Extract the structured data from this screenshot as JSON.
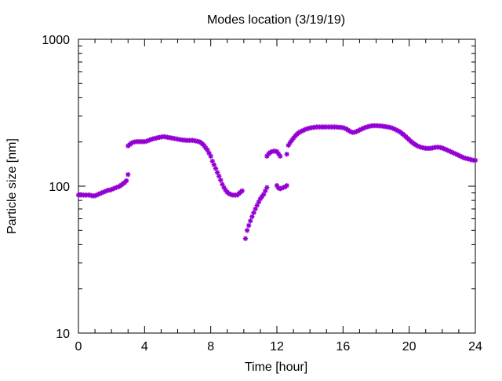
{
  "chart_data": {
    "type": "scatter",
    "title": "Modes location (3/19/19)",
    "xlabel": "Time [hour]",
    "ylabel": "Particle size [nm]",
    "xlim": [
      0,
      24
    ],
    "ylim": [
      10,
      1000
    ],
    "yscale": "log",
    "xticks": [
      0,
      4,
      8,
      12,
      16,
      20,
      24
    ],
    "yticks": [
      10,
      100,
      1000
    ],
    "grid": false,
    "legend": "none",
    "marker_color": "#9400d3",
    "marker": "asterisk",
    "series": [
      {
        "points": [
          [
            0.0,
            87
          ],
          [
            0.1,
            87
          ],
          [
            0.2,
            87
          ],
          [
            0.3,
            87
          ],
          [
            0.4,
            87
          ],
          [
            0.5,
            87
          ],
          [
            0.6,
            87
          ],
          [
            0.7,
            87
          ],
          [
            0.8,
            86
          ],
          [
            0.9,
            86
          ],
          [
            1.0,
            86
          ],
          [
            1.1,
            87
          ],
          [
            1.2,
            88
          ],
          [
            1.3,
            89
          ],
          [
            1.4,
            90
          ],
          [
            1.5,
            91
          ],
          [
            1.6,
            92
          ],
          [
            1.7,
            93
          ],
          [
            1.8,
            94
          ],
          [
            1.9,
            94
          ],
          [
            2.0,
            95
          ],
          [
            2.1,
            96
          ],
          [
            2.2,
            97
          ],
          [
            2.3,
            98
          ],
          [
            2.4,
            99
          ],
          [
            2.5,
            100
          ],
          [
            2.6,
            102
          ],
          [
            2.7,
            104
          ],
          [
            2.8,
            106
          ],
          [
            2.9,
            109
          ],
          [
            3.0,
            120
          ],
          [
            3.0,
            188
          ],
          [
            3.1,
            192
          ],
          [
            3.2,
            196
          ],
          [
            3.3,
            199
          ],
          [
            3.4,
            200
          ],
          [
            3.5,
            201
          ],
          [
            3.6,
            201
          ],
          [
            3.7,
            201
          ],
          [
            3.8,
            201
          ],
          [
            3.9,
            201
          ],
          [
            4.0,
            201
          ],
          [
            4.1,
            202
          ],
          [
            4.2,
            204
          ],
          [
            4.3,
            206
          ],
          [
            4.4,
            208
          ],
          [
            4.5,
            210
          ],
          [
            4.6,
            211
          ],
          [
            4.7,
            212
          ],
          [
            4.8,
            214
          ],
          [
            4.9,
            215
          ],
          [
            5.0,
            216
          ],
          [
            5.1,
            217
          ],
          [
            5.2,
            217
          ],
          [
            5.3,
            216
          ],
          [
            5.4,
            215
          ],
          [
            5.5,
            214
          ],
          [
            5.6,
            213
          ],
          [
            5.7,
            212
          ],
          [
            5.8,
            211
          ],
          [
            5.9,
            210
          ],
          [
            6.0,
            209
          ],
          [
            6.1,
            208
          ],
          [
            6.2,
            207
          ],
          [
            6.3,
            206
          ],
          [
            6.4,
            206
          ],
          [
            6.5,
            205
          ],
          [
            6.6,
            205
          ],
          [
            6.7,
            205
          ],
          [
            6.8,
            205
          ],
          [
            6.9,
            205
          ],
          [
            7.0,
            204
          ],
          [
            7.1,
            203
          ],
          [
            7.2,
            202
          ],
          [
            7.3,
            201
          ],
          [
            7.4,
            198
          ],
          [
            7.5,
            194
          ],
          [
            7.6,
            189
          ],
          [
            7.7,
            182
          ],
          [
            7.8,
            176
          ],
          [
            7.9,
            168
          ],
          [
            8.0,
            160
          ],
          [
            8.1,
            148
          ],
          [
            8.2,
            140
          ],
          [
            8.3,
            132
          ],
          [
            8.4,
            124
          ],
          [
            8.5,
            117
          ],
          [
            8.6,
            110
          ],
          [
            8.7,
            103
          ],
          [
            8.8,
            98
          ],
          [
            8.9,
            94
          ],
          [
            9.0,
            91
          ],
          [
            9.1,
            89
          ],
          [
            9.2,
            88
          ],
          [
            9.3,
            87
          ],
          [
            9.4,
            87
          ],
          [
            9.5,
            87
          ],
          [
            9.6,
            87
          ],
          [
            9.7,
            89
          ],
          [
            9.8,
            91
          ],
          [
            9.9,
            93
          ],
          [
            10.1,
            44
          ],
          [
            10.2,
            50
          ],
          [
            10.3,
            54
          ],
          [
            10.4,
            58
          ],
          [
            10.5,
            62
          ],
          [
            10.6,
            66
          ],
          [
            10.7,
            70
          ],
          [
            10.8,
            74
          ],
          [
            10.9,
            78
          ],
          [
            11.0,
            82
          ],
          [
            11.1,
            85
          ],
          [
            11.2,
            88
          ],
          [
            11.3,
            93
          ],
          [
            11.4,
            98
          ],
          [
            11.4,
            160
          ],
          [
            11.5,
            166
          ],
          [
            11.6,
            170
          ],
          [
            11.7,
            172
          ],
          [
            11.8,
            173
          ],
          [
            11.9,
            173
          ],
          [
            12.0,
            172
          ],
          [
            12.1,
            166
          ],
          [
            12.2,
            160
          ],
          [
            12.0,
            101
          ],
          [
            12.1,
            97
          ],
          [
            12.2,
            96
          ],
          [
            12.3,
            97
          ],
          [
            12.4,
            98
          ],
          [
            12.5,
            99
          ],
          [
            12.6,
            101
          ],
          [
            12.6,
            165
          ],
          [
            12.7,
            190
          ],
          [
            12.8,
            198
          ],
          [
            12.9,
            205
          ],
          [
            13.0,
            212
          ],
          [
            13.1,
            219
          ],
          [
            13.2,
            225
          ],
          [
            13.3,
            230
          ],
          [
            13.4,
            234
          ],
          [
            13.5,
            237
          ],
          [
            13.6,
            240
          ],
          [
            13.7,
            243
          ],
          [
            13.8,
            245
          ],
          [
            13.9,
            247
          ],
          [
            14.0,
            249
          ],
          [
            14.1,
            250
          ],
          [
            14.2,
            251
          ],
          [
            14.3,
            252
          ],
          [
            14.4,
            253
          ],
          [
            14.5,
            253
          ],
          [
            14.6,
            253
          ],
          [
            14.7,
            253
          ],
          [
            14.8,
            253
          ],
          [
            14.9,
            253
          ],
          [
            15.0,
            253
          ],
          [
            15.1,
            253
          ],
          [
            15.2,
            253
          ],
          [
            15.3,
            253
          ],
          [
            15.4,
            253
          ],
          [
            15.5,
            253
          ],
          [
            15.6,
            253
          ],
          [
            15.7,
            252
          ],
          [
            15.8,
            252
          ],
          [
            15.9,
            251
          ],
          [
            16.0,
            250
          ],
          [
            16.1,
            248
          ],
          [
            16.2,
            245
          ],
          [
            16.3,
            241
          ],
          [
            16.4,
            237
          ],
          [
            16.5,
            234
          ],
          [
            16.6,
            232
          ],
          [
            16.7,
            233
          ],
          [
            16.8,
            235
          ],
          [
            16.9,
            238
          ],
          [
            17.0,
            241
          ],
          [
            17.1,
            244
          ],
          [
            17.2,
            247
          ],
          [
            17.3,
            250
          ],
          [
            17.4,
            252
          ],
          [
            17.5,
            254
          ],
          [
            17.6,
            256
          ],
          [
            17.7,
            257
          ],
          [
            17.8,
            258
          ],
          [
            17.9,
            258
          ],
          [
            18.0,
            258
          ],
          [
            18.1,
            258
          ],
          [
            18.2,
            257
          ],
          [
            18.3,
            257
          ],
          [
            18.4,
            256
          ],
          [
            18.5,
            255
          ],
          [
            18.6,
            254
          ],
          [
            18.7,
            253
          ],
          [
            18.8,
            252
          ],
          [
            18.9,
            250
          ],
          [
            19.0,
            248
          ],
          [
            19.1,
            245
          ],
          [
            19.2,
            242
          ],
          [
            19.3,
            239
          ],
          [
            19.4,
            236
          ],
          [
            19.5,
            232
          ],
          [
            19.6,
            227
          ],
          [
            19.7,
            222
          ],
          [
            19.8,
            217
          ],
          [
            19.9,
            212
          ],
          [
            20.0,
            207
          ],
          [
            20.1,
            202
          ],
          [
            20.2,
            198
          ],
          [
            20.3,
            194
          ],
          [
            20.4,
            191
          ],
          [
            20.5,
            188
          ],
          [
            20.6,
            186
          ],
          [
            20.7,
            184
          ],
          [
            20.8,
            183
          ],
          [
            20.9,
            182
          ],
          [
            21.0,
            181
          ],
          [
            21.1,
            181
          ],
          [
            21.2,
            181
          ],
          [
            21.3,
            181
          ],
          [
            21.4,
            182
          ],
          [
            21.5,
            183
          ],
          [
            21.6,
            184
          ],
          [
            21.7,
            184
          ],
          [
            21.8,
            184
          ],
          [
            21.9,
            183
          ],
          [
            22.0,
            182
          ],
          [
            22.1,
            180
          ],
          [
            22.2,
            178
          ],
          [
            22.3,
            176
          ],
          [
            22.4,
            174
          ],
          [
            22.5,
            172
          ],
          [
            22.6,
            170
          ],
          [
            22.7,
            168
          ],
          [
            22.8,
            166
          ],
          [
            22.9,
            164
          ],
          [
            23.0,
            162
          ],
          [
            23.1,
            160
          ],
          [
            23.2,
            158
          ],
          [
            23.3,
            156
          ],
          [
            23.4,
            155
          ],
          [
            23.5,
            154
          ],
          [
            23.6,
            153
          ],
          [
            23.7,
            152
          ],
          [
            23.8,
            151
          ],
          [
            23.9,
            150
          ],
          [
            24.0,
            150
          ]
        ]
      }
    ]
  }
}
